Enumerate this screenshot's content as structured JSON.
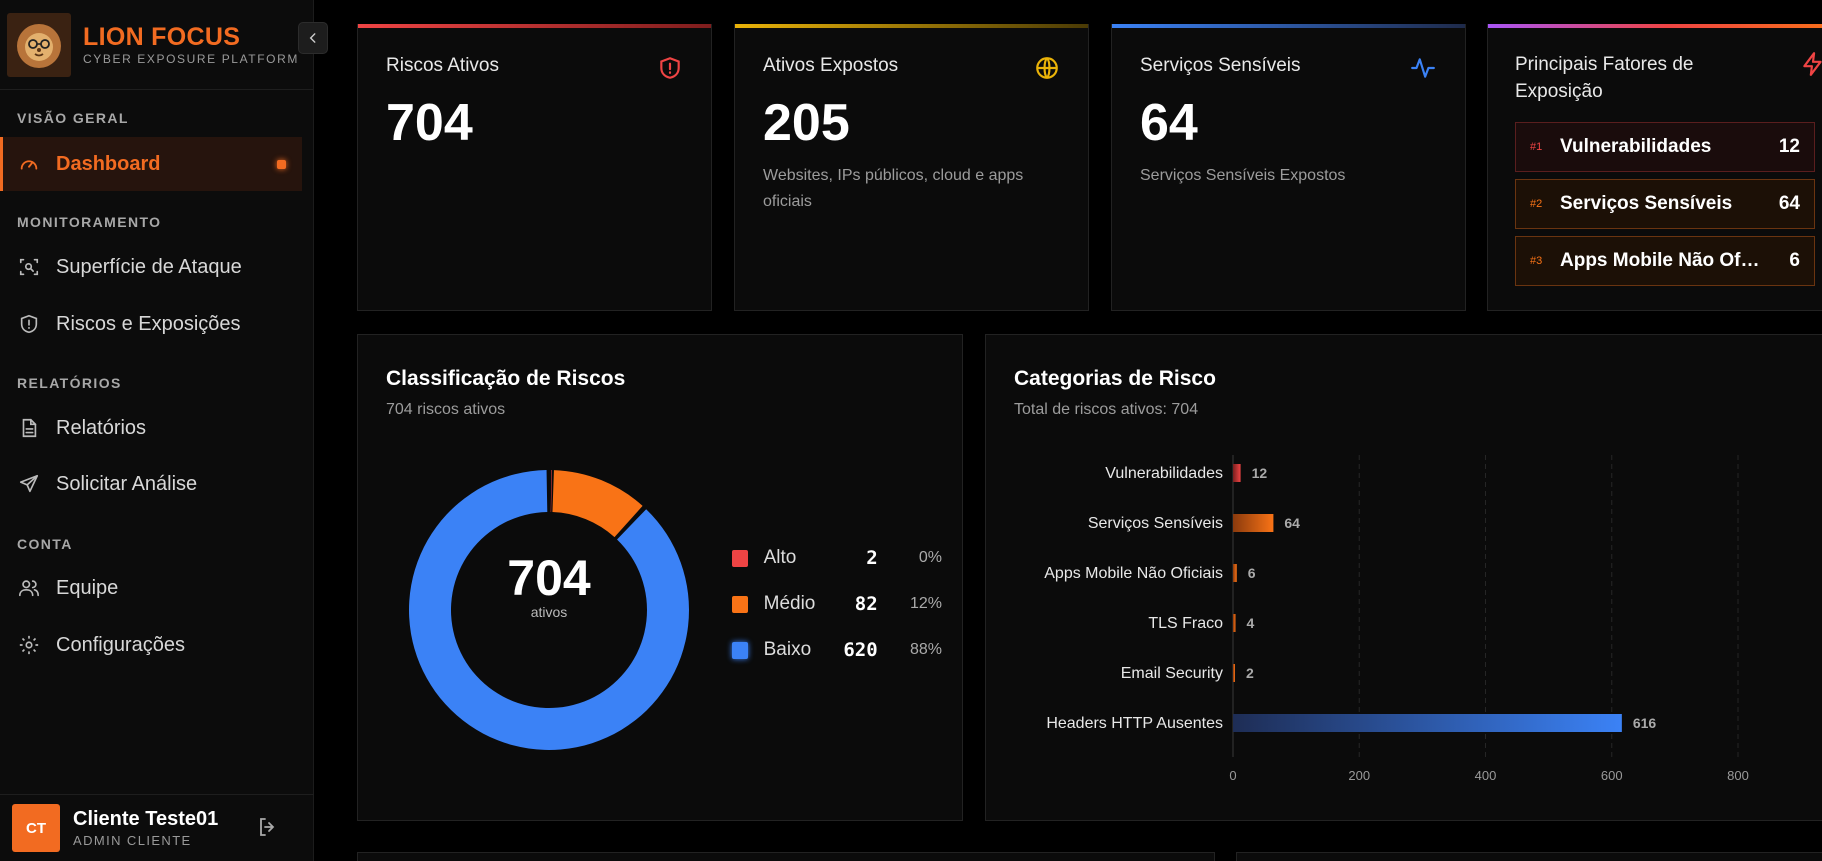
{
  "sidebar": {
    "brand_name": "LION FOCUS",
    "brand_sub": "CYBER EXPOSURE PLATFORM",
    "sections": {
      "overview": "VISÃO GERAL",
      "monitoring": "MONITORAMENTO",
      "reports": "RELATÓRIOS",
      "account": "CONTA"
    },
    "items": [
      {
        "label": "Dashboard",
        "icon": "gauge-icon",
        "active": true
      },
      {
        "label": "Superfície de Ataque",
        "icon": "scan-icon"
      },
      {
        "label": "Riscos e Exposições",
        "icon": "shield-icon"
      },
      {
        "label": "Relatórios",
        "icon": "document-icon"
      },
      {
        "label": "Solicitar Análise",
        "icon": "send-icon"
      },
      {
        "label": "Equipe",
        "icon": "users-icon"
      },
      {
        "label": "Configurações",
        "icon": "gear-icon"
      }
    ],
    "user": {
      "initials": "CT",
      "name": "Cliente Teste01",
      "role": "ADMIN CLIENTE"
    }
  },
  "stats": {
    "risks": {
      "title": "Riscos Ativos",
      "value": "704",
      "color": "#ef4444"
    },
    "assets": {
      "title": "Ativos Expostos",
      "value": "205",
      "desc": "Websites, IPs públicos, cloud e apps oficiais",
      "color": "#eab308"
    },
    "services": {
      "title": "Serviços Sensíveis",
      "value": "64",
      "desc": "Serviços Sensíveis Expostos",
      "color": "#3b82f6"
    }
  },
  "factors": {
    "title": "Principais Fatores de Exposição",
    "items": [
      {
        "rank": "#1",
        "name": "Vulnerabilidades",
        "value": "12"
      },
      {
        "rank": "#2",
        "name": "Serviços Sensíveis",
        "value": "64"
      },
      {
        "rank": "#3",
        "name": "Apps Mobile Não Oficiais",
        "value": "6"
      }
    ]
  },
  "classification": {
    "title": "Classificação de Riscos",
    "subtitle": "704 riscos ativos",
    "center_value": "704",
    "center_label": "ativos",
    "legend": [
      {
        "name": "Alto",
        "value": "2",
        "pct": "0%",
        "color": "#ef4444"
      },
      {
        "name": "Médio",
        "value": "82",
        "pct": "12%",
        "color": "#f97316"
      },
      {
        "name": "Baixo",
        "value": "620",
        "pct": "88%",
        "color": "#3b82f6"
      }
    ]
  },
  "categories": {
    "title": "Categorias de Risco",
    "subtitle": "Total de riscos ativos: 704"
  },
  "chart_data": [
    {
      "type": "pie",
      "labels": [
        "Alto",
        "Médio",
        "Baixo"
      ],
      "values": [
        2,
        82,
        620
      ],
      "colors": [
        "#ef4444",
        "#f97316",
        "#3b82f6"
      ],
      "donut": true
    },
    {
      "type": "bar",
      "orientation": "horizontal",
      "categories": [
        "Vulnerabilidades",
        "Serviços Sensíveis",
        "Apps Mobile Não Oficiais",
        "TLS Fraco",
        "Email Security",
        "Headers HTTP Ausentes"
      ],
      "values": [
        12,
        64,
        6,
        4,
        2,
        616
      ],
      "xlim": [
        0,
        800
      ],
      "xticks": [
        0,
        200,
        400,
        600,
        800
      ],
      "grid": true,
      "colors": [
        "#ef4444",
        "#f97316",
        "#f97316",
        "#f97316",
        "#f97316",
        "#3b82f6"
      ]
    }
  ]
}
